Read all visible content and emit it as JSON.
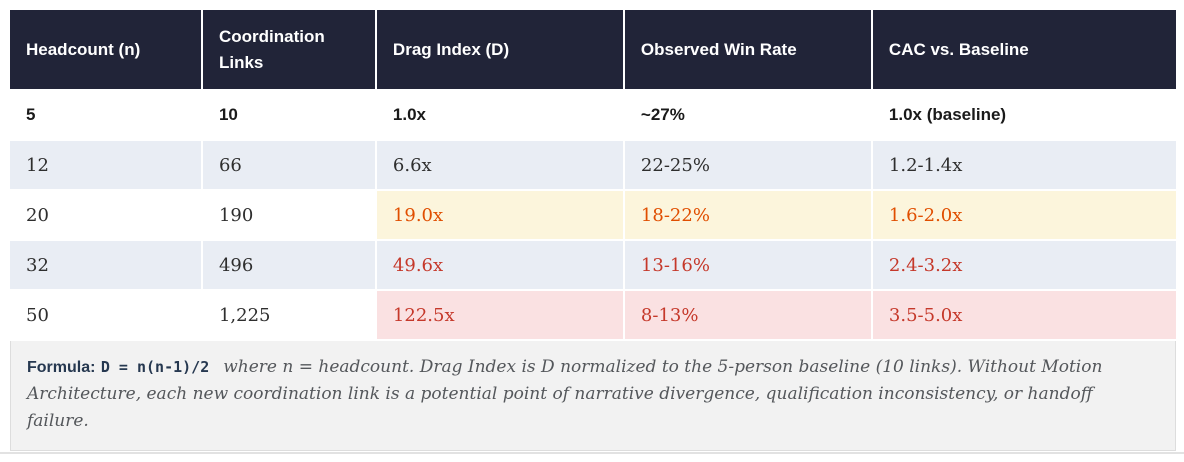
{
  "table": {
    "columns": [
      {
        "label": "Headcount (n)"
      },
      {
        "label": "Coordination Links"
      },
      {
        "label": "Drag Index (D)"
      },
      {
        "label": "Observed Win Rate"
      },
      {
        "label": "CAC vs. Baseline"
      }
    ],
    "rows": [
      {
        "cells": [
          "5",
          "10",
          "1.0x",
          "~27%",
          "1.0x (baseline)"
        ],
        "style": "baseline-bold"
      },
      {
        "cells": [
          "12",
          "66",
          "6.6x",
          "22-25%",
          "1.2-1.4x"
        ],
        "style": "stripe"
      },
      {
        "cells": [
          "20",
          "190",
          "19.0x",
          "18-22%",
          "1.6-2.0x"
        ],
        "style": "warning-highlight"
      },
      {
        "cells": [
          "32",
          "496",
          "49.6x",
          "13-16%",
          "2.4-3.2x"
        ],
        "style": "stripe danger-highlight"
      },
      {
        "cells": [
          "50",
          "1,225",
          "122.5x",
          "8-13%",
          "3.5-5.0x"
        ],
        "style": "danger-highlight"
      }
    ]
  },
  "footer": {
    "formula_label": "Formula:",
    "formula_code": "D = n(n-1)/2",
    "note": "where n = headcount. Drag Index is D normalized to the 5-person baseline (10 links). Without Motion Architecture, each new coordination link is a potential point of narrative divergence, qualification inconsistency, or handoff failure."
  },
  "colors": {
    "header_bg": "#212438",
    "header_text": "#ffffff",
    "stripe_bg": "#e9edf4",
    "warning_bg": "#fcf5dc",
    "warning_text": "#e04e00",
    "danger_bg": "#fae1e2",
    "danger_text": "#c5382a",
    "footer_bg": "#f2f2f2",
    "accent_navy": "#263850"
  }
}
